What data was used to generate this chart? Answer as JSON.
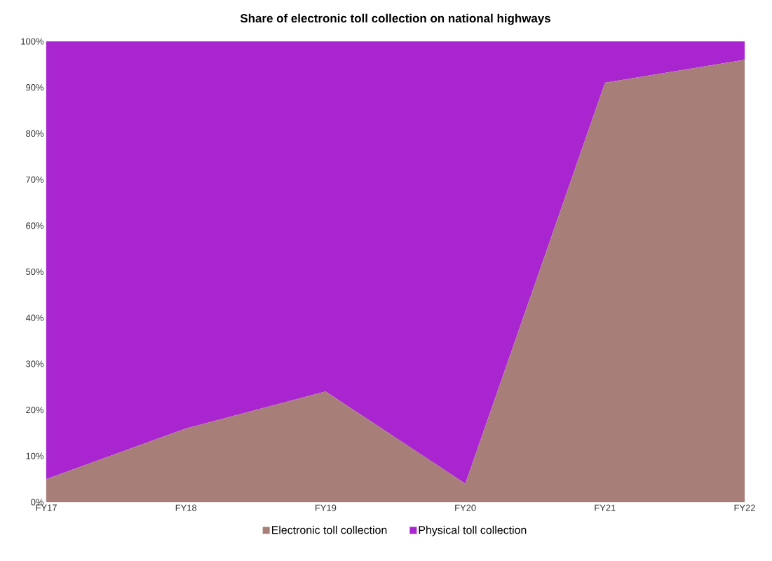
{
  "chart_data": {
    "type": "area",
    "title": "Share of electronic toll collection on national highways",
    "categories": [
      "FY17",
      "FY18",
      "FY19",
      "FY20",
      "FY21",
      "FY22"
    ],
    "stacked": true,
    "series": [
      {
        "name": "Electronic toll collection",
        "color": "#a87f78",
        "values": [
          5,
          16,
          24,
          4,
          91,
          96
        ]
      },
      {
        "name": "Physical toll collection",
        "color": "#a825cf",
        "values": [
          95,
          84,
          76,
          96,
          9,
          4
        ]
      }
    ],
    "ylim": [
      0,
      100
    ],
    "yticks": [
      {
        "value": 0,
        "label": "0%"
      },
      {
        "value": 10,
        "label": "10%"
      },
      {
        "value": 20,
        "label": "20%"
      },
      {
        "value": 30,
        "label": "30%"
      },
      {
        "value": 40,
        "label": "40%"
      },
      {
        "value": 50,
        "label": "50%"
      },
      {
        "value": 60,
        "label": "60%"
      },
      {
        "value": 70,
        "label": "70%"
      },
      {
        "value": 80,
        "label": "80%"
      },
      {
        "value": 90,
        "label": "90%"
      },
      {
        "value": 100,
        "label": "100%"
      }
    ],
    "legend": "bottom"
  }
}
